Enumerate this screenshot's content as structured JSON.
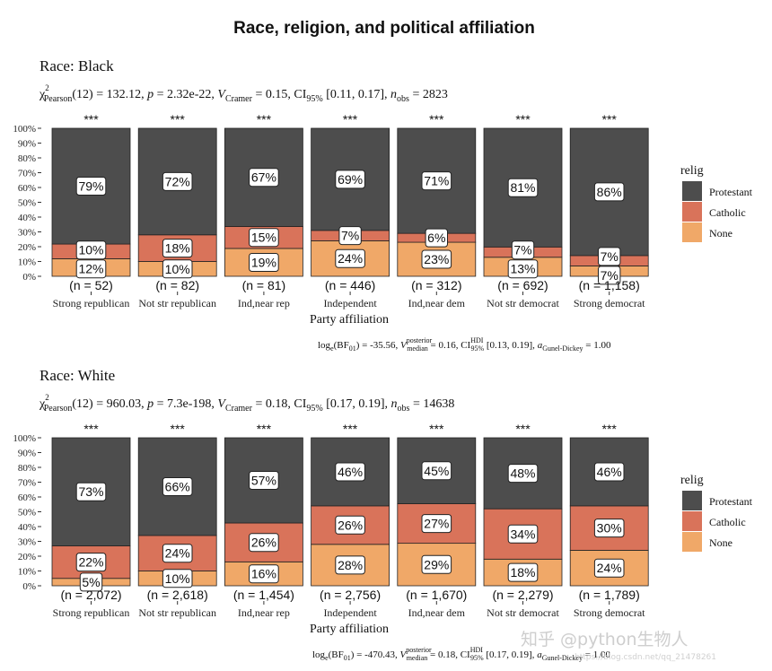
{
  "title": "Race, religion, and political affiliation",
  "watermark": "知乎 @python生物人",
  "watermark_small": "https://blog.csdn.net/qq_21478261",
  "colors": {
    "Protestant": "#4d4d4d",
    "Catholic": "#d9735a",
    "None": "#f0a868",
    "text": "#1a1a1a"
  },
  "chart_data": [
    {
      "type": "bar",
      "stacked": "percent",
      "panel_title": "Race: Black",
      "subtitle": {
        "chi": "χ",
        "chi_sup": "2",
        "chi_sub": "Pearson",
        "stat": "(12) = 132.12, ",
        "p_label": "p",
        "p_value": " = 2.32e-22, ",
        "v_label": "V",
        "v_sub": "Cramer",
        "v_value": " = 0.15, CI",
        "ci_sub": "95%",
        "ci_value": " [0.11, 0.17], ",
        "n_label": "n",
        "n_sub": "obs",
        "n_value": " = 2823"
      },
      "caption": {
        "log": "log",
        "log_sub": "e",
        "bf": "(BF",
        "bf_sub": "01",
        "bf_value": ") = -35.56, ",
        "v_label": "V",
        "v_sup": "posterior",
        "v_sub": "median",
        "v_value": " = 0.16, CI",
        "ci_sup": "HDI",
        "ci_sub": "95%",
        "ci_value": " [0.13, 0.19], ",
        "a_label": "a",
        "a_sub": "Gunel-Dickey",
        "a_value": " = 1.00"
      },
      "xlabel": "Party affiliation",
      "ylabel": "",
      "ylim": [
        0,
        100
      ],
      "yticks": [
        "0%",
        "10%",
        "20%",
        "30%",
        "40%",
        "50%",
        "60%",
        "70%",
        "80%",
        "90%",
        "100%"
      ],
      "categories": [
        "Strong republican",
        "Not str republican",
        "Ind,near rep",
        "Independent",
        "Ind,near dem",
        "Not str democrat",
        "Strong democrat"
      ],
      "sample_sizes": [
        "(n = 52)",
        "(n = 82)",
        "(n = 81)",
        "(n = 446)",
        "(n = 312)",
        "(n = 692)",
        "(n = 1,158)"
      ],
      "significance": [
        "***",
        "***",
        "***",
        "***",
        "***",
        "***",
        "***"
      ],
      "series": [
        {
          "name": "Protestant",
          "values": [
            79,
            72,
            67,
            69,
            71,
            81,
            86
          ]
        },
        {
          "name": "Catholic",
          "values": [
            10,
            18,
            15,
            7,
            6,
            7,
            7
          ]
        },
        {
          "name": "None",
          "values": [
            12,
            10,
            19,
            24,
            23,
            13,
            7
          ]
        }
      ],
      "bar_labels": {
        "Protestant": [
          "79%",
          "72%",
          "67%",
          "69%",
          "71%",
          "81%",
          "86%"
        ],
        "Catholic": [
          "10%",
          "18%",
          "15%",
          "7%",
          "6%",
          "7%",
          "7%"
        ],
        "None": [
          "12%",
          "10%",
          "19%",
          "24%",
          "23%",
          "13%",
          "7%"
        ]
      },
      "legend": {
        "title": "relig",
        "items": [
          "Protestant",
          "Catholic",
          "None"
        ],
        "position": "right"
      }
    },
    {
      "type": "bar",
      "stacked": "percent",
      "panel_title": "Race: White",
      "subtitle": {
        "chi": "χ",
        "chi_sup": "2",
        "chi_sub": "Pearson",
        "stat": "(12) = 960.03, ",
        "p_label": "p",
        "p_value": " = 7.3e-198, ",
        "v_label": "V",
        "v_sub": "Cramer",
        "v_value": " = 0.18, CI",
        "ci_sub": "95%",
        "ci_value": " [0.17, 0.19], ",
        "n_label": "n",
        "n_sub": "obs",
        "n_value": " = 14638"
      },
      "caption": {
        "log": "log",
        "log_sub": "e",
        "bf": "(BF",
        "bf_sub": "01",
        "bf_value": ") = -470.43, ",
        "v_label": "V",
        "v_sup": "posterior",
        "v_sub": "median",
        "v_value": " = 0.18, CI",
        "ci_sup": "HDI",
        "ci_sub": "95%",
        "ci_value": " [0.17, 0.19], ",
        "a_label": "a",
        "a_sub": "Gunel-Dickey",
        "a_value": " = 1.00"
      },
      "xlabel": "Party affiliation",
      "ylabel": "",
      "ylim": [
        0,
        100
      ],
      "yticks": [
        "0%",
        "10%",
        "20%",
        "30%",
        "40%",
        "50%",
        "60%",
        "70%",
        "80%",
        "90%",
        "100%"
      ],
      "categories": [
        "Strong republican",
        "Not str republican",
        "Ind,near rep",
        "Independent",
        "Ind,near dem",
        "Not str democrat",
        "Strong democrat"
      ],
      "sample_sizes": [
        "(n = 2,072)",
        "(n = 2,618)",
        "(n = 1,454)",
        "(n = 2,756)",
        "(n = 1,670)",
        "(n = 2,279)",
        "(n = 1,789)"
      ],
      "significance": [
        "***",
        "***",
        "***",
        "***",
        "***",
        "***",
        "***"
      ],
      "series": [
        {
          "name": "Protestant",
          "values": [
            73,
            66,
            57,
            46,
            45,
            48,
            46
          ]
        },
        {
          "name": "Catholic",
          "values": [
            22,
            24,
            26,
            26,
            27,
            34,
            30
          ]
        },
        {
          "name": "None",
          "values": [
            5,
            10,
            16,
            28,
            29,
            18,
            24
          ]
        }
      ],
      "bar_labels": {
        "Protestant": [
          "73%",
          "66%",
          "57%",
          "46%",
          "45%",
          "48%",
          "46%"
        ],
        "Catholic": [
          "22%",
          "24%",
          "26%",
          "26%",
          "27%",
          "34%",
          "30%"
        ],
        "None": [
          "5%",
          "10%",
          "16%",
          "28%",
          "29%",
          "18%",
          "24%"
        ]
      },
      "legend": {
        "title": "relig",
        "items": [
          "Protestant",
          "Catholic",
          "None"
        ],
        "position": "right"
      }
    }
  ]
}
